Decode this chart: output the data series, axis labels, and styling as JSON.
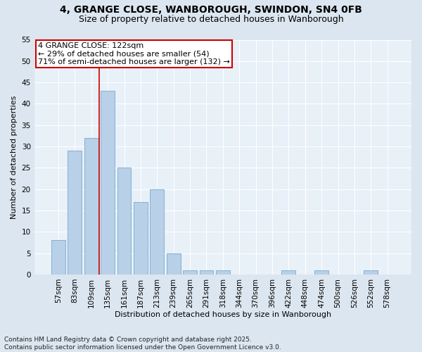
{
  "title_line1": "4, GRANGE CLOSE, WANBOROUGH, SWINDON, SN4 0FB",
  "title_line2": "Size of property relative to detached houses in Wanborough",
  "bar_labels": [
    "57sqm",
    "83sqm",
    "109sqm",
    "135sqm",
    "161sqm",
    "187sqm",
    "213sqm",
    "239sqm",
    "265sqm",
    "291sqm",
    "318sqm",
    "344sqm",
    "370sqm",
    "396sqm",
    "422sqm",
    "448sqm",
    "474sqm",
    "500sqm",
    "526sqm",
    "552sqm",
    "578sqm"
  ],
  "bar_values": [
    8,
    29,
    32,
    43,
    25,
    17,
    20,
    5,
    1,
    1,
    1,
    0,
    0,
    0,
    1,
    0,
    1,
    0,
    0,
    1,
    0
  ],
  "bar_color": "#b8d0e8",
  "bar_edgecolor": "#7aaacb",
  "vline_color": "#cc0000",
  "annotation_text": "4 GRANGE CLOSE: 122sqm\n← 29% of detached houses are smaller (54)\n71% of semi-detached houses are larger (132) →",
  "annotation_box_color": "#ffffff",
  "annotation_box_edgecolor": "#cc0000",
  "xlabel": "Distribution of detached houses by size in Wanborough",
  "ylabel": "Number of detached properties",
  "ylim_max": 55,
  "yticks": [
    0,
    5,
    10,
    15,
    20,
    25,
    30,
    35,
    40,
    45,
    50,
    55
  ],
  "background_color": "#dce6f0",
  "plot_background_color": "#e8f0f8",
  "grid_color": "#ffffff",
  "footnote": "Contains HM Land Registry data © Crown copyright and database right 2025.\nContains public sector information licensed under the Open Government Licence v3.0.",
  "title_fontsize": 10,
  "subtitle_fontsize": 9,
  "axis_label_fontsize": 8,
  "tick_fontsize": 7.5,
  "annotation_fontsize": 8,
  "footnote_fontsize": 6.5
}
